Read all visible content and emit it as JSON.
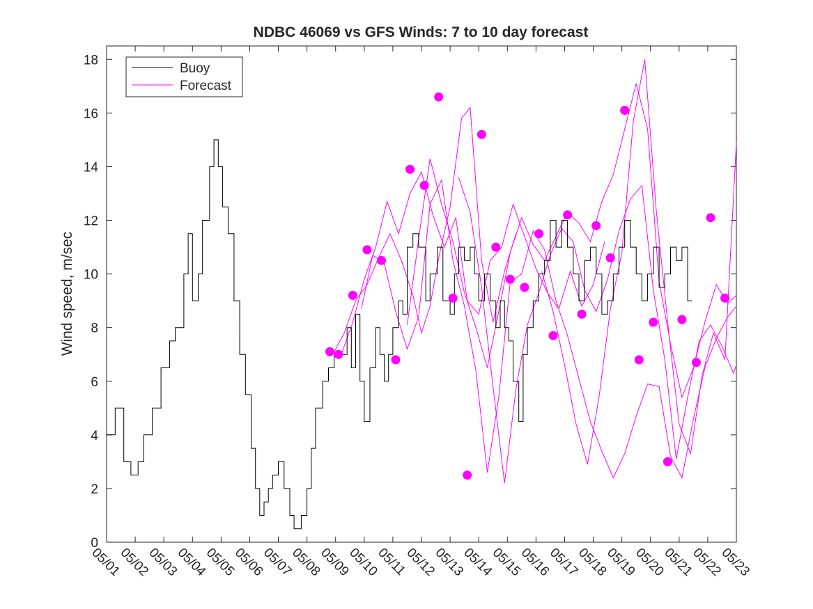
{
  "chart_data": {
    "type": "line",
    "title": "NDBC 46069 vs GFS Winds: 7 to 10 day forecast",
    "xlabel": "",
    "ylabel": "Wind speed, m/sec",
    "xlim": [
      0,
      22
    ],
    "ylim": [
      0,
      18.5
    ],
    "x_tick_labels": [
      "05/01",
      "05/02",
      "05/03",
      "05/04",
      "05/05",
      "05/06",
      "05/07",
      "05/08",
      "05/09",
      "05/10",
      "05/11",
      "05/12",
      "05/13",
      "05/14",
      "05/15",
      "05/16",
      "05/17",
      "05/18",
      "05/19",
      "05/20",
      "05/21",
      "05/22",
      "05/23"
    ],
    "y_ticks": [
      0,
      2,
      4,
      6,
      8,
      10,
      12,
      14,
      16,
      18
    ],
    "legend": {
      "placement": "top-left",
      "entries": [
        {
          "label": "Buoy",
          "color": "#000000"
        },
        {
          "label": "Forecast",
          "color": "#ff00ff"
        }
      ]
    },
    "colors": {
      "buoy": "#000000",
      "forecast": "#ff00ff",
      "axes": "#262626"
    },
    "series": [
      {
        "name": "Buoy",
        "color": "#000000",
        "points": [
          [
            0,
            4
          ],
          [
            0.3,
            5
          ],
          [
            0.6,
            3
          ],
          [
            0.85,
            2.5
          ],
          [
            1.1,
            3
          ],
          [
            1.3,
            4
          ],
          [
            1.6,
            5
          ],
          [
            1.9,
            6.5
          ],
          [
            2.2,
            7.5
          ],
          [
            2.4,
            8
          ],
          [
            2.7,
            10
          ],
          [
            2.85,
            11.5
          ],
          [
            3,
            9
          ],
          [
            3.2,
            10
          ],
          [
            3.35,
            12
          ],
          [
            3.6,
            14
          ],
          [
            3.75,
            15
          ],
          [
            3.9,
            14
          ],
          [
            4.05,
            12.5
          ],
          [
            4.25,
            11.5
          ],
          [
            4.45,
            9
          ],
          [
            4.65,
            7
          ],
          [
            4.85,
            5.5
          ],
          [
            5.05,
            3.5
          ],
          [
            5.2,
            2
          ],
          [
            5.35,
            1
          ],
          [
            5.5,
            1.5
          ],
          [
            5.65,
            2
          ],
          [
            5.8,
            2.5
          ],
          [
            6,
            3
          ],
          [
            6.2,
            2
          ],
          [
            6.4,
            1
          ],
          [
            6.55,
            0.5
          ],
          [
            6.8,
            1
          ],
          [
            7,
            2
          ],
          [
            7.15,
            3.5
          ],
          [
            7.3,
            5
          ],
          [
            7.55,
            6
          ],
          [
            7.75,
            6.5
          ],
          [
            7.95,
            7
          ],
          [
            8.2,
            7
          ],
          [
            8.4,
            8
          ],
          [
            8.55,
            6.5
          ],
          [
            8.7,
            8.5
          ],
          [
            8.85,
            6
          ],
          [
            9,
            4.5
          ],
          [
            9.2,
            6.5
          ],
          [
            9.4,
            8
          ],
          [
            9.55,
            7
          ],
          [
            9.7,
            6
          ],
          [
            9.85,
            7
          ],
          [
            10,
            8
          ],
          [
            10.2,
            9
          ],
          [
            10.35,
            8.5
          ],
          [
            10.5,
            11
          ],
          [
            10.7,
            11.5
          ],
          [
            10.9,
            11
          ],
          [
            11.15,
            9
          ],
          [
            11.3,
            10
          ],
          [
            11.55,
            11
          ],
          [
            11.75,
            9
          ],
          [
            12,
            8.5
          ],
          [
            12.15,
            10
          ],
          [
            12.3,
            11
          ],
          [
            12.5,
            10.5
          ],
          [
            12.7,
            11
          ],
          [
            12.85,
            10
          ],
          [
            13,
            9
          ],
          [
            13.2,
            10
          ],
          [
            13.4,
            9
          ],
          [
            13.6,
            8
          ],
          [
            13.75,
            9
          ],
          [
            13.9,
            8
          ],
          [
            14.05,
            7.5
          ],
          [
            14.2,
            6
          ],
          [
            14.4,
            4.5
          ],
          [
            14.55,
            7
          ],
          [
            14.7,
            8
          ],
          [
            14.9,
            9
          ],
          [
            15.1,
            10
          ],
          [
            15.3,
            10.5
          ],
          [
            15.5,
            12
          ],
          [
            15.7,
            11
          ],
          [
            15.9,
            12
          ],
          [
            16.1,
            11
          ],
          [
            16.3,
            10
          ],
          [
            16.5,
            9
          ],
          [
            16.7,
            10.5
          ],
          [
            16.9,
            11
          ],
          [
            17.1,
            10
          ],
          [
            17.3,
            8.5
          ],
          [
            17.5,
            9
          ],
          [
            17.7,
            10
          ],
          [
            17.9,
            11
          ],
          [
            18.1,
            12
          ],
          [
            18.3,
            11
          ],
          [
            18.5,
            10
          ],
          [
            18.7,
            9
          ],
          [
            18.9,
            10
          ],
          [
            19.1,
            11
          ],
          [
            19.3,
            9.5
          ],
          [
            19.5,
            10
          ],
          [
            19.7,
            11
          ],
          [
            19.9,
            10.5
          ],
          [
            20.1,
            11
          ],
          [
            20.3,
            9
          ],
          [
            20.45,
            9
          ]
        ]
      },
      {
        "name": "Forecast",
        "color": "#ff00ff",
        "lines": [
          [
            [
              7.9,
              7
            ],
            [
              8.3,
              7.8
            ],
            [
              8.7,
              9
            ],
            [
              9.1,
              9.6
            ],
            [
              9.5,
              10.6
            ],
            [
              9.9,
              11.5
            ],
            [
              10.3,
              10.5
            ],
            [
              10.7,
              9.2
            ],
            [
              11,
              7.8
            ],
            [
              11.3,
              8.8
            ],
            [
              11.6,
              10.6
            ],
            [
              12,
              12.5
            ],
            [
              12.4,
              15.8
            ],
            [
              12.7,
              16.2
            ],
            [
              13.1,
              10.5
            ],
            [
              13.5,
              8.2
            ],
            [
              13.9,
              10.1
            ],
            [
              14.3,
              11.5
            ]
          ],
          [
            [
              8.2,
              7
            ],
            [
              8.6,
              8.2
            ],
            [
              9,
              9.8
            ],
            [
              9.4,
              11
            ],
            [
              9.8,
              12.7
            ],
            [
              10.2,
              11.5
            ],
            [
              10.6,
              13
            ],
            [
              11,
              13.8
            ],
            [
              11.4,
              12.2
            ],
            [
              11.8,
              11
            ],
            [
              12.2,
              12.1
            ],
            [
              12.6,
              9
            ],
            [
              13,
              8.5
            ],
            [
              13.4,
              10.5
            ],
            [
              13.8,
              11
            ],
            [
              14.2,
              12.6
            ],
            [
              14.6,
              11.4
            ],
            [
              15,
              10.2
            ],
            [
              15.4,
              9.3
            ],
            [
              15.8,
              8.7
            ],
            [
              16.2,
              10.1
            ],
            [
              16.6,
              8.8
            ],
            [
              17,
              9.6
            ],
            [
              17.4,
              11.2
            ]
          ],
          [
            [
              8.9,
              8.7
            ],
            [
              9.3,
              10.7
            ],
            [
              9.7,
              10.4
            ],
            [
              10.1,
              8.6
            ],
            [
              10.5,
              7.2
            ],
            [
              10.9,
              8.4
            ],
            [
              11.3,
              12.6
            ],
            [
              11.7,
              13.5
            ],
            [
              12.1,
              10.5
            ],
            [
              12.5,
              8.8
            ],
            [
              12.9,
              6.4
            ],
            [
              13.3,
              2.6
            ],
            [
              13.7,
              5.4
            ],
            [
              14.1,
              9.7
            ],
            [
              14.5,
              10
            ],
            [
              14.9,
              11.6
            ],
            [
              15.3,
              10.9
            ],
            [
              15.7,
              9
            ],
            [
              16.1,
              7.7
            ],
            [
              16.5,
              6.1
            ],
            [
              16.9,
              4.5
            ],
            [
              17.3,
              3.4
            ],
            [
              17.7,
              2.4
            ],
            [
              18.1,
              3.3
            ],
            [
              18.5,
              4.7
            ],
            [
              18.9,
              5.9
            ],
            [
              19.3,
              5.8
            ],
            [
              19.7,
              3.2
            ],
            [
              20.1,
              2.4
            ],
            [
              20.5,
              4.6
            ],
            [
              20.9,
              6.5
            ],
            [
              21.3,
              7.6
            ],
            [
              21.7,
              8.4
            ],
            [
              22,
              8.8
            ]
          ],
          [
            [
              10.5,
              8.1
            ],
            [
              10.9,
              11.3
            ],
            [
              11.3,
              14.3
            ],
            [
              11.7,
              12.6
            ],
            [
              12.1,
              11.2
            ],
            [
              12.5,
              9.3
            ],
            [
              12.9,
              8
            ],
            [
              13.3,
              6.5
            ],
            [
              13.7,
              8.6
            ],
            [
              14.1,
              10.8
            ],
            [
              14.5,
              12.1
            ],
            [
              14.9,
              11.1
            ],
            [
              15.3,
              10.5
            ],
            [
              15.7,
              11.4
            ],
            [
              16.1,
              12.3
            ],
            [
              16.5,
              11.9
            ],
            [
              16.9,
              11.2
            ],
            [
              17.3,
              12.7
            ],
            [
              17.7,
              13.7
            ],
            [
              18.1,
              15.4
            ],
            [
              18.5,
              17.1
            ],
            [
              18.9,
              15.4
            ],
            [
              19.3,
              9.7
            ],
            [
              19.7,
              7.4
            ],
            [
              20.1,
              5.4
            ],
            [
              20.5,
              6.5
            ],
            [
              20.9,
              8.2
            ],
            [
              21.3,
              9.6
            ],
            [
              21.7,
              8.9
            ],
            [
              22,
              9.2
            ]
          ],
          [
            [
              12.3,
              13.6
            ],
            [
              12.7,
              12.3
            ],
            [
              13.1,
              9.5
            ],
            [
              13.5,
              5.8
            ],
            [
              13.9,
              2.2
            ],
            [
              14.3,
              5.7
            ],
            [
              14.7,
              8.1
            ],
            [
              15.1,
              9.3
            ],
            [
              15.5,
              10.7
            ],
            [
              15.9,
              11.7
            ],
            [
              16.3,
              11.2
            ],
            [
              16.7,
              9.4
            ],
            [
              17.1,
              8.6
            ],
            [
              17.5,
              9.8
            ],
            [
              17.9,
              11.6
            ],
            [
              18.3,
              12.8
            ],
            [
              18.7,
              13.3
            ],
            [
              19.1,
              9.4
            ],
            [
              19.5,
              6.8
            ],
            [
              19.9,
              3.1
            ],
            [
              20.3,
              5.4
            ],
            [
              20.7,
              7.5
            ],
            [
              21.1,
              8.1
            ],
            [
              21.5,
              7.3
            ],
            [
              21.9,
              6.3
            ],
            [
              22,
              6.6
            ]
          ],
          [
            [
              15.2,
              10.1
            ],
            [
              15.6,
              8.6
            ],
            [
              16,
              6.6
            ],
            [
              16.4,
              4.4
            ],
            [
              16.8,
              2.9
            ],
            [
              17.2,
              5.4
            ],
            [
              17.6,
              8.7
            ],
            [
              18,
              10.8
            ],
            [
              18.4,
              15.7
            ],
            [
              18.8,
              18
            ],
            [
              19.2,
              12.4
            ],
            [
              19.6,
              8.2
            ],
            [
              20,
              4.4
            ],
            [
              20.4,
              3.3
            ],
            [
              20.8,
              6.2
            ],
            [
              21.2,
              7.8
            ],
            [
              21.6,
              6.8
            ],
            [
              22,
              14.9
            ]
          ]
        ],
        "markers": [
          [
            7.8,
            7.1
          ],
          [
            8.1,
            7
          ],
          [
            8.6,
            9.2
          ],
          [
            9.1,
            10.9
          ],
          [
            9.6,
            10.5
          ],
          [
            10.1,
            6.8
          ],
          [
            10.6,
            13.9
          ],
          [
            11.1,
            13.3
          ],
          [
            11.6,
            16.6
          ],
          [
            12.1,
            9.1
          ],
          [
            12.6,
            2.5
          ],
          [
            13.1,
            15.2
          ],
          [
            13.6,
            11
          ],
          [
            14.1,
            9.8
          ],
          [
            14.6,
            9.5
          ],
          [
            15.1,
            11.5
          ],
          [
            15.6,
            7.7
          ],
          [
            16.1,
            12.2
          ],
          [
            16.6,
            8.5
          ],
          [
            17.1,
            11.8
          ],
          [
            17.6,
            10.6
          ],
          [
            18.1,
            16.1
          ],
          [
            18.6,
            6.8
          ],
          [
            19.1,
            8.2
          ],
          [
            19.6,
            3
          ],
          [
            20.1,
            8.3
          ],
          [
            20.6,
            6.7
          ],
          [
            21.1,
            12.1
          ],
          [
            21.6,
            9.1
          ]
        ]
      }
    ]
  }
}
